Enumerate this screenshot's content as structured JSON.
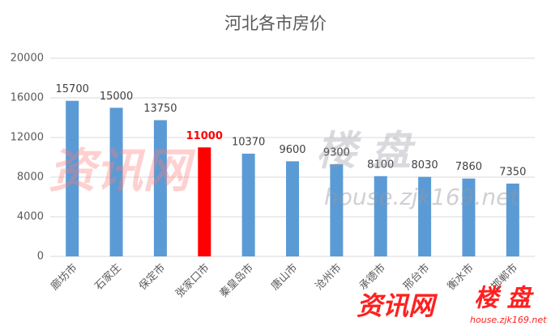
{
  "chart_data": {
    "type": "bar",
    "title": "河北各市房价",
    "categories": [
      "廊坊市",
      "石家庄",
      "保定市",
      "张家口市",
      "秦皇岛市",
      "唐山市",
      "沧州市",
      "承德市",
      "邢台市",
      "衡水市",
      "邯郸市"
    ],
    "values": [
      15700,
      15000,
      13750,
      11000,
      10370,
      9600,
      9300,
      8100,
      8030,
      7860,
      7350
    ],
    "colors": [
      "#5b9bd5",
      "#5b9bd5",
      "#5b9bd5",
      "#ff0000",
      "#5b9bd5",
      "#5b9bd5",
      "#5b9bd5",
      "#5b9bd5",
      "#5b9bd5",
      "#5b9bd5",
      "#5b9bd5"
    ],
    "ylim": [
      0,
      20000
    ],
    "yticks": [
      0,
      4000,
      8000,
      12000,
      16000,
      20000
    ],
    "grid": true
  },
  "watermark": {
    "brand": "资讯网",
    "tag": "楼 盘",
    "url": "house.zjk169.net"
  }
}
